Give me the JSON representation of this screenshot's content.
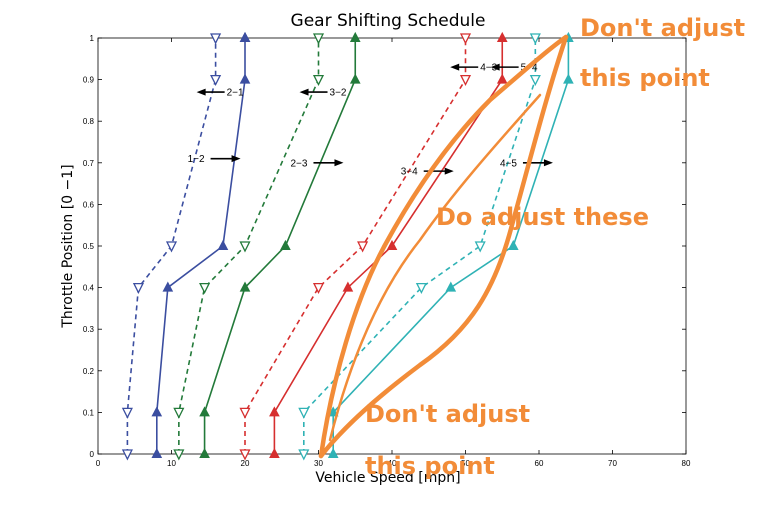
{
  "chart_data": {
    "type": "line",
    "title": "Gear Shifting Schedule",
    "xlabel": "Vehicle Speed [mph]",
    "ylabel": "Throttle Position [0 −1]",
    "xlim": [
      0,
      80
    ],
    "ylim": [
      0,
      1
    ],
    "x_ticks": [
      "0",
      "10",
      "20",
      "30",
      "40",
      "50",
      "60",
      "70",
      "80"
    ],
    "y_ticks": [
      "0",
      "0.1",
      "0.2",
      "0.3",
      "0.4",
      "0.5",
      "0.6",
      "0.7",
      "0.8",
      "0.9",
      "1"
    ],
    "grid": false,
    "colors": {
      "blue": "#3b4ea0",
      "green": "#237a3a",
      "red": "#d62f2f",
      "cyan": "#2fb2b5",
      "annotation": "#f28c38"
    },
    "series": [
      {
        "id": "up12",
        "color": "#3b4ea0",
        "style": "solid",
        "marker": "up",
        "x": [
          8,
          8,
          9.5,
          17,
          20,
          20,
          20
        ],
        "y": [
          0,
          0.1,
          0.4,
          0.5,
          0.9,
          1,
          1
        ]
      },
      {
        "id": "dn21",
        "color": "#3b4ea0",
        "style": "dashed",
        "marker": "down",
        "x": [
          4,
          4,
          5.5,
          10,
          16,
          16
        ],
        "y": [
          0,
          0.1,
          0.4,
          0.5,
          0.9,
          1
        ]
      },
      {
        "id": "up23",
        "color": "#237a3a",
        "style": "solid",
        "marker": "up",
        "x": [
          14.5,
          14.5,
          20,
          25.5,
          35,
          35
        ],
        "y": [
          0,
          0.1,
          0.4,
          0.5,
          0.9,
          1
        ]
      },
      {
        "id": "dn32",
        "color": "#237a3a",
        "style": "dashed",
        "marker": "down",
        "x": [
          11,
          11,
          14.5,
          20,
          30,
          30
        ],
        "y": [
          0,
          0.1,
          0.4,
          0.5,
          0.9,
          1
        ]
      },
      {
        "id": "up34",
        "color": "#d62f2f",
        "style": "solid",
        "marker": "up",
        "x": [
          24,
          24,
          34,
          40,
          55,
          55
        ],
        "y": [
          0,
          0.1,
          0.4,
          0.5,
          0.9,
          1
        ]
      },
      {
        "id": "dn43",
        "color": "#d62f2f",
        "style": "dashed",
        "marker": "down",
        "x": [
          20,
          20,
          30,
          36,
          50,
          50
        ],
        "y": [
          0,
          0.1,
          0.4,
          0.5,
          0.9,
          1
        ]
      },
      {
        "id": "up45",
        "color": "#2fb2b5",
        "style": "solid",
        "marker": "up",
        "x": [
          32,
          32,
          48,
          56.5,
          64,
          64
        ],
        "y": [
          0,
          0.1,
          0.4,
          0.5,
          0.9,
          1
        ]
      },
      {
        "id": "dn54",
        "color": "#2fb2b5",
        "style": "dashed",
        "marker": "down",
        "x": [
          28,
          28,
          44,
          52,
          59.5,
          59.5
        ],
        "y": [
          0,
          0.1,
          0.4,
          0.5,
          0.9,
          1
        ]
      }
    ],
    "shift_labels": [
      {
        "text": "2−1",
        "x": 17.5,
        "y": 0.87,
        "arrow": "left"
      },
      {
        "text": "3−2",
        "x": 31.5,
        "y": 0.87,
        "arrow": "left"
      },
      {
        "text": "4−3",
        "x": 52,
        "y": 0.93,
        "arrow": "left"
      },
      {
        "text": "5−4",
        "x": 57.5,
        "y": 0.93,
        "arrow": "left"
      },
      {
        "text": "1−2",
        "x": 14.5,
        "y": 0.71,
        "arrow": "right"
      },
      {
        "text": "2−3",
        "x": 28.5,
        "y": 0.7,
        "arrow": "right"
      },
      {
        "text": "3−4",
        "x": 43.5,
        "y": 0.68,
        "arrow": "right"
      },
      {
        "text": "4−5",
        "x": 57,
        "y": 0.7,
        "arrow": "right"
      }
    ],
    "annotations": {
      "top_note": [
        "Don't adjust",
        "this point"
      ],
      "middle_note": "Do adjust these",
      "bottom_note": [
        "Don't adjust",
        "this point"
      ]
    }
  }
}
